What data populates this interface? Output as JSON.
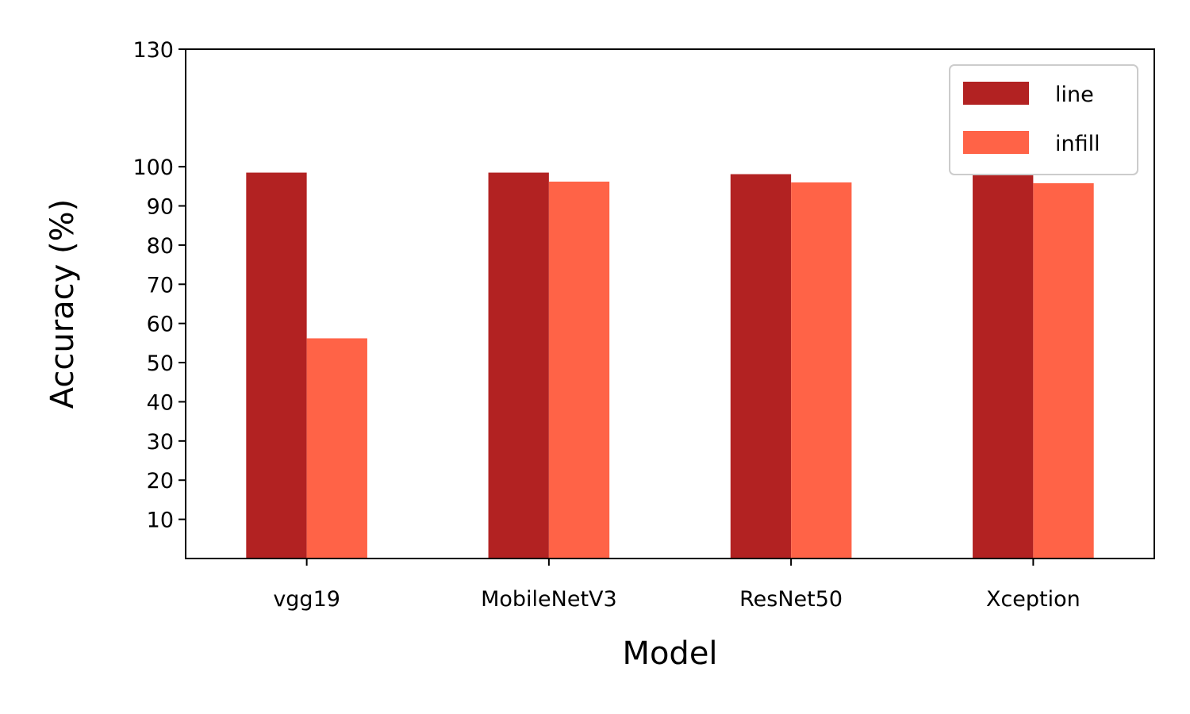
{
  "chart_data": {
    "type": "bar",
    "title": "",
    "xlabel": "Model",
    "ylabel": "Accuracy (%)",
    "categories": [
      "vgg19",
      "MobileNetV3",
      "ResNet50",
      "Xception"
    ],
    "series": [
      {
        "name": "line",
        "color": "#b22222",
        "values": [
          98.5,
          98.5,
          98.1,
          98.0
        ]
      },
      {
        "name": "infill",
        "color": "#ff6347",
        "values": [
          56.2,
          96.2,
          96.0,
          95.8
        ]
      }
    ],
    "ylim": [
      0,
      130
    ],
    "yticks": [
      10,
      20,
      30,
      40,
      50,
      60,
      70,
      80,
      90,
      100,
      130
    ],
    "grid": false,
    "legend_position": "top-right"
  }
}
